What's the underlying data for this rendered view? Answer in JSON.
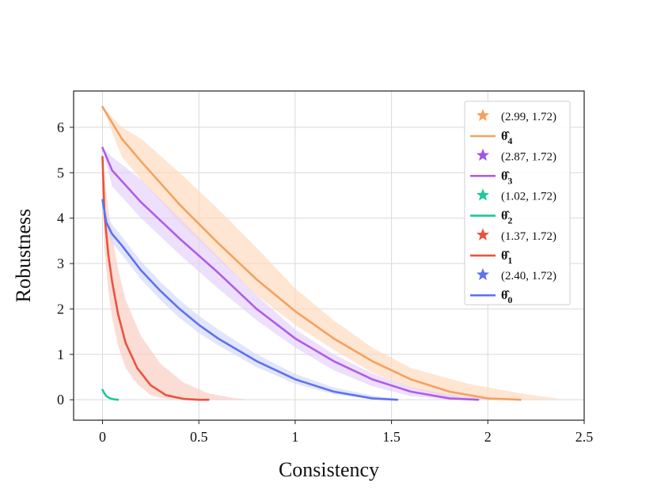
{
  "chart_data": {
    "type": "line",
    "title": "",
    "xlabel": "Consistency",
    "ylabel": "Robustness",
    "xlim": [
      -0.15,
      2.5
    ],
    "ylim": [
      -0.45,
      6.8
    ],
    "xticks": [
      {
        "value": 0,
        "label": "0"
      },
      {
        "value": 0.5,
        "label": "0.5"
      },
      {
        "value": 1,
        "label": "1"
      },
      {
        "value": 1.5,
        "label": "1.5"
      },
      {
        "value": 2,
        "label": "2"
      },
      {
        "value": 2.5,
        "label": "2.5"
      }
    ],
    "yticks": [
      {
        "value": 0,
        "label": "0"
      },
      {
        "value": 1,
        "label": "1"
      },
      {
        "value": 2,
        "label": "2"
      },
      {
        "value": 3,
        "label": "3"
      },
      {
        "value": 4,
        "label": "4"
      },
      {
        "value": 5,
        "label": "5"
      },
      {
        "value": 6,
        "label": "6"
      }
    ],
    "grid": true,
    "legend_position": "top-right",
    "series": [
      {
        "name": "θ̂4",
        "base": "θ̂",
        "sub": "4",
        "star_label": "(2.99, 1.72)",
        "line_color": "#f5a15e",
        "band_color": "#fdd9bc",
        "star_color": "#f5a15e",
        "x": [
          0,
          0.1,
          0.2,
          0.4,
          0.6,
          0.8,
          1.0,
          1.2,
          1.4,
          1.6,
          1.8,
          2.0,
          2.17
        ],
        "y": [
          6.45,
          5.75,
          5.25,
          4.3,
          3.45,
          2.65,
          1.95,
          1.35,
          0.85,
          0.45,
          0.18,
          0.03,
          0
        ],
        "band_low": [
          6.45,
          5.35,
          4.85,
          3.9,
          3.1,
          2.3,
          1.65,
          1.1,
          0.6,
          0.25,
          0.05,
          0,
          0
        ],
        "band_high": [
          6.45,
          6.0,
          5.75,
          5.0,
          4.2,
          3.35,
          2.45,
          1.75,
          1.15,
          0.7,
          0.35,
          0.12,
          0.02
        ],
        "band_x_high": [
          0,
          0.1,
          0.2,
          0.4,
          0.6,
          0.8,
          1.0,
          1.2,
          1.4,
          1.6,
          1.9,
          2.2,
          2.38
        ]
      },
      {
        "name": "θ̂3",
        "base": "θ̂",
        "sub": "3",
        "star_label": "(2.87, 1.72)",
        "line_color": "#b05ce8",
        "band_color": "#e4d0fb",
        "star_color": "#a155ea",
        "x": [
          0,
          0.05,
          0.2,
          0.4,
          0.6,
          0.8,
          1.0,
          1.2,
          1.4,
          1.6,
          1.8,
          1.95
        ],
        "y": [
          5.55,
          5.05,
          4.35,
          3.55,
          2.8,
          2.0,
          1.35,
          0.85,
          0.45,
          0.18,
          0.03,
          0
        ],
        "band_low": [
          5.55,
          4.7,
          4.0,
          3.2,
          2.45,
          1.75,
          1.15,
          0.65,
          0.3,
          0.08,
          0,
          0
        ],
        "band_high": [
          5.55,
          5.35,
          4.85,
          4.0,
          3.15,
          2.3,
          1.55,
          1.0,
          0.58,
          0.27,
          0.08,
          0.01
        ],
        "band_x_high": [
          0,
          0.05,
          0.2,
          0.4,
          0.6,
          0.8,
          1.0,
          1.2,
          1.4,
          1.6,
          1.85,
          2.02
        ]
      },
      {
        "name": "θ̂2",
        "base": "θ̂",
        "sub": "2",
        "star_label": "(1.02, 1.72)",
        "line_color": "#1bc999",
        "band_color": "#a8eed8",
        "star_color": "#1bc999",
        "x": [
          0,
          0.01,
          0.02,
          0.04,
          0.06,
          0.08
        ],
        "y": [
          0.22,
          0.14,
          0.08,
          0.03,
          0.01,
          0
        ],
        "band_low": [
          0.22,
          0.13,
          0.07,
          0.02,
          0,
          0
        ],
        "band_high": [
          0.23,
          0.15,
          0.09,
          0.04,
          0.02,
          0.01
        ],
        "band_x_high": [
          0,
          0.01,
          0.02,
          0.04,
          0.06,
          0.08
        ]
      },
      {
        "name": "θ̂1",
        "base": "θ̂",
        "sub": "1",
        "star_label": "(1.37, 1.72)",
        "line_color": "#e9533d",
        "band_color": "#fbcbc0",
        "star_color": "#e9533d",
        "x": [
          0,
          0.01,
          0.03,
          0.05,
          0.08,
          0.12,
          0.18,
          0.25,
          0.33,
          0.42,
          0.5,
          0.55
        ],
        "y": [
          5.35,
          4.1,
          3.2,
          2.6,
          1.9,
          1.25,
          0.7,
          0.32,
          0.1,
          0.02,
          0,
          0
        ],
        "band_low": [
          5.35,
          3.3,
          2.4,
          1.8,
          1.2,
          0.7,
          0.35,
          0.1,
          0.02,
          0,
          0,
          0
        ],
        "band_high": [
          5.35,
          4.9,
          4.2,
          3.6,
          2.9,
          2.2,
          1.4,
          0.8,
          0.38,
          0.14,
          0.04,
          0.01
        ],
        "band_x_high": [
          0,
          0.01,
          0.03,
          0.05,
          0.08,
          0.12,
          0.2,
          0.3,
          0.42,
          0.55,
          0.68,
          0.75
        ]
      },
      {
        "name": "θ̂0",
        "base": "θ̂",
        "sub": "0",
        "star_label": "(2.40, 1.72)",
        "line_color": "#5e72ee",
        "band_color": "#d3d8fa",
        "star_color": "#5e72ee",
        "x": [
          0,
          0.02,
          0.05,
          0.1,
          0.2,
          0.3,
          0.4,
          0.5,
          0.6,
          0.8,
          1.0,
          1.2,
          1.4,
          1.53
        ],
        "y": [
          4.4,
          3.9,
          3.65,
          3.4,
          2.85,
          2.4,
          2.0,
          1.65,
          1.35,
          0.85,
          0.45,
          0.18,
          0.03,
          0
        ],
        "band_low": [
          4.4,
          3.75,
          3.45,
          3.2,
          2.65,
          2.2,
          1.8,
          1.47,
          1.2,
          0.72,
          0.35,
          0.12,
          0.01,
          0
        ],
        "band_high": [
          4.45,
          4.1,
          3.85,
          3.6,
          3.05,
          2.6,
          2.2,
          1.85,
          1.55,
          1.0,
          0.57,
          0.27,
          0.08,
          0.01
        ],
        "band_x_high": [
          0,
          0.02,
          0.05,
          0.1,
          0.2,
          0.3,
          0.4,
          0.5,
          0.6,
          0.8,
          1.0,
          1.2,
          1.42,
          1.56
        ]
      }
    ]
  }
}
